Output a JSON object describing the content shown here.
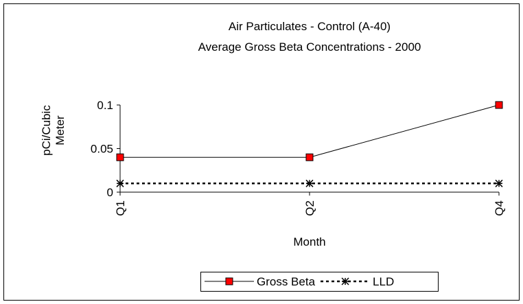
{
  "chart_data": {
    "type": "line",
    "title": "Air Particulates - Control (A-40)",
    "subtitle": "Average Gross Beta Concentrations - 2000",
    "x_label": "Month",
    "y_label": "pCi/Cubic Meter",
    "categories": [
      "Q1",
      "Q2",
      "Q4"
    ],
    "series": [
      {
        "name": "Gross Beta",
        "color": "#ff0000",
        "values": [
          0.04,
          0.04,
          0.1
        ]
      },
      {
        "name": "LLD",
        "color": "#000000",
        "values": [
          0.01,
          0.01,
          0.01
        ]
      }
    ],
    "ylim": [
      0,
      0.1
    ],
    "yticks": [
      0,
      0.05,
      0.1
    ],
    "legend": "bottom"
  }
}
